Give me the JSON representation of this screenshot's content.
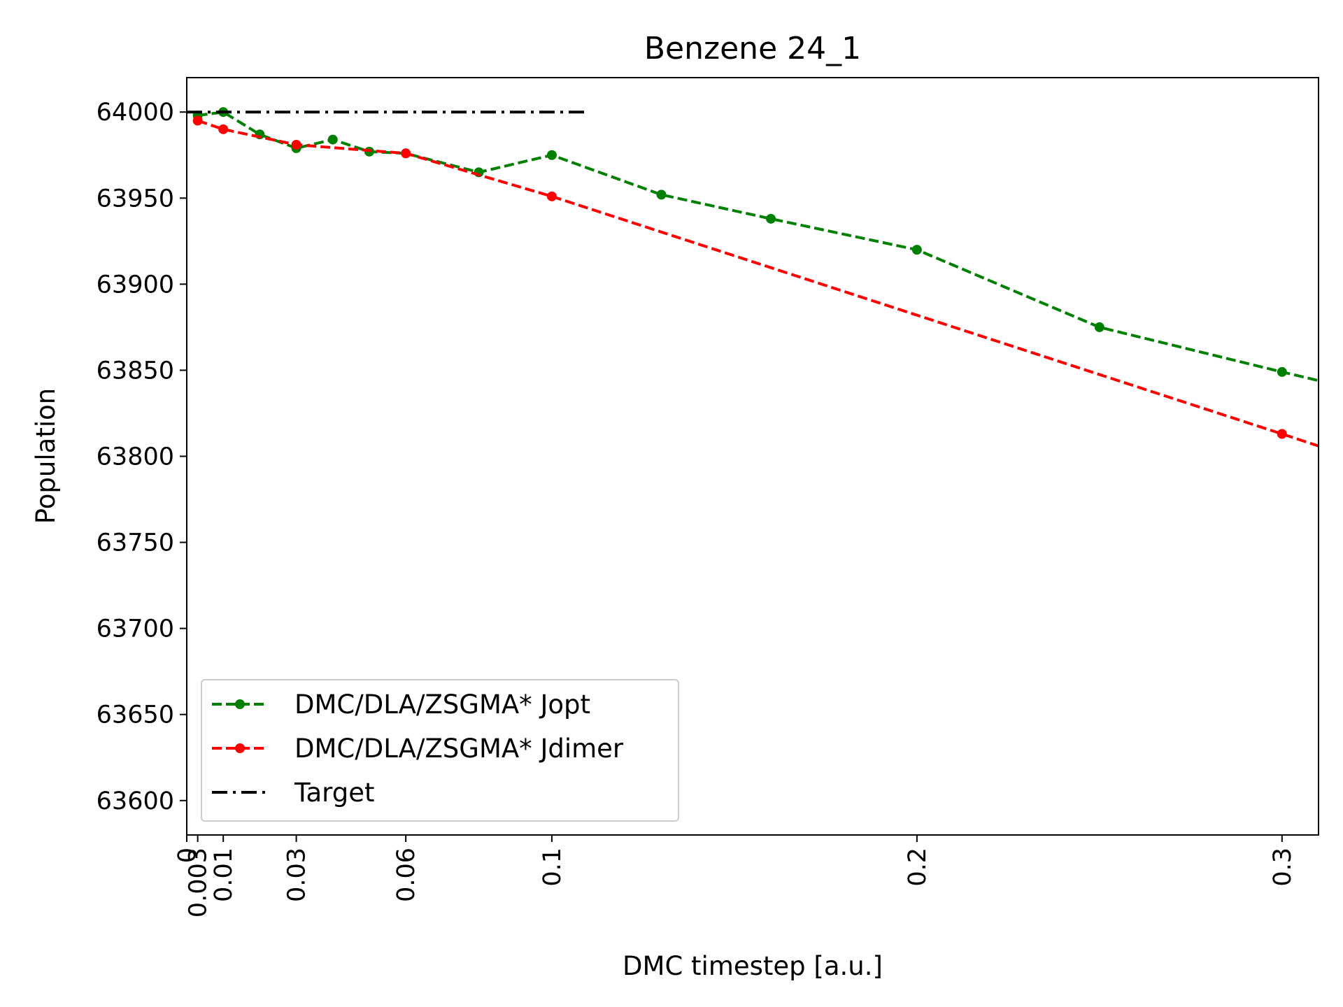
{
  "chart_data": {
    "type": "line",
    "title": "Benzene 24_1",
    "xlabel": "DMC timestep [a.u.]",
    "ylabel": "Population",
    "xlim": [
      0,
      0.31
    ],
    "ylim": [
      63580,
      64020
    ],
    "grid": false,
    "legend_position": "lower-left",
    "x_ticks": [
      0,
      0.003,
      0.01,
      0.03,
      0.06,
      0.1,
      0.2,
      0.3
    ],
    "x_tick_labels": [
      "0",
      "0.003",
      "0.01",
      "0.03",
      "0.06",
      "0.1",
      "0.2",
      "0.3"
    ],
    "y_ticks": [
      63600,
      63650,
      63700,
      63750,
      63800,
      63850,
      63900,
      63950,
      64000
    ],
    "y_tick_labels": [
      "63600",
      "63650",
      "63700",
      "63750",
      "63800",
      "63850",
      "63900",
      "63950",
      "64000"
    ],
    "series": [
      {
        "name": "DMC/DLA/ZSGMA* Jopt",
        "color": "#008000",
        "style": "dashed-dot-markers",
        "x": [
          0.003,
          0.01,
          0.02,
          0.03,
          0.04,
          0.05,
          0.06,
          0.08,
          0.1,
          0.13,
          0.16,
          0.2,
          0.25,
          0.3,
          0.32
        ],
        "y": [
          63998,
          64000,
          63987,
          63979,
          63984,
          63977,
          63976,
          63965,
          63975,
          63952,
          63938,
          63920,
          63875,
          63849,
          63839
        ]
      },
      {
        "name": "DMC/DLA/ZSGMA* Jdimer",
        "color": "#ff0000",
        "style": "dashed-dot-markers",
        "x": [
          0.003,
          0.01,
          0.03,
          0.06,
          0.1,
          0.3,
          0.32
        ],
        "y": [
          63995,
          63990,
          63981,
          63976,
          63951,
          63813,
          63799
        ]
      },
      {
        "name": "Target",
        "color": "#000000",
        "style": "dashdot",
        "x": [
          0,
          0.11
        ],
        "y": [
          64000,
          64000
        ]
      }
    ]
  }
}
